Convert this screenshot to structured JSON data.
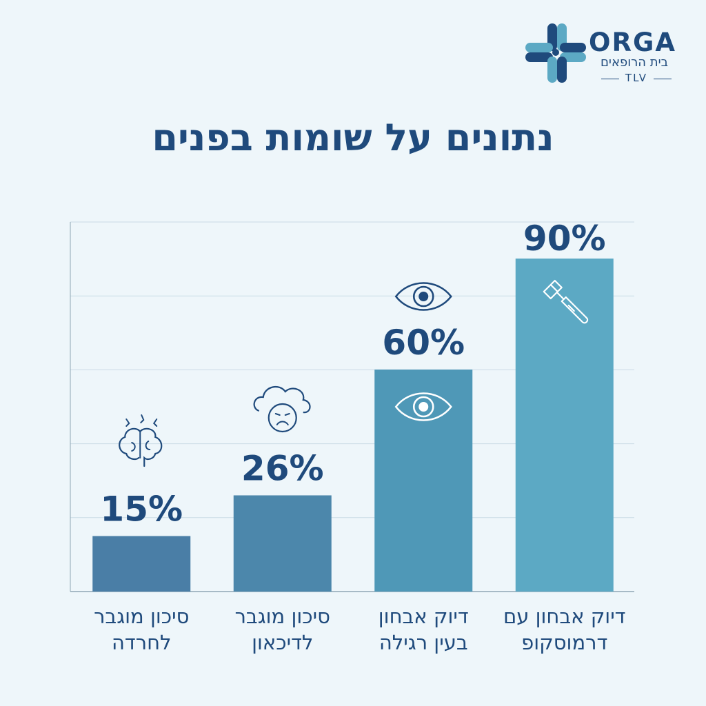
{
  "logo": {
    "name": "ORGA",
    "subtitle": "בית הרופאים",
    "tag": "TLV"
  },
  "title": "נתונים על שומות בפנים",
  "colors": {
    "text": "#1f4a7c",
    "bars": [
      "#4a7ea6",
      "#4c87ab",
      "#4f98b7",
      "#5ca9c4"
    ],
    "grid": "#c9dbe5",
    "axis": "#8fa6b4",
    "icon_on_bar": "#ffffff",
    "icon_dark": "#1f4a7c"
  },
  "chart_data": {
    "type": "bar",
    "title": "נתונים על שומות בפנים",
    "categories": [
      [
        "סיכון מוגבר",
        "לחרדה"
      ],
      [
        "סיכון מוגבר",
        "לדיכאון"
      ],
      [
        "דיוק אבחון",
        "בעין רגילה"
      ],
      [
        "דיוק אבחון עם",
        "דרמוסקופ"
      ]
    ],
    "values": [
      15,
      26,
      60,
      90
    ],
    "value_labels": [
      "15%",
      "26%",
      "60%",
      "90%"
    ],
    "icons": [
      "brain-stress-icon",
      "sad-cloud-face-icon",
      "eye-icon",
      "dermatoscope-icon"
    ],
    "ylim": [
      0,
      100
    ],
    "grid": true,
    "xlabel": "",
    "ylabel": ""
  }
}
